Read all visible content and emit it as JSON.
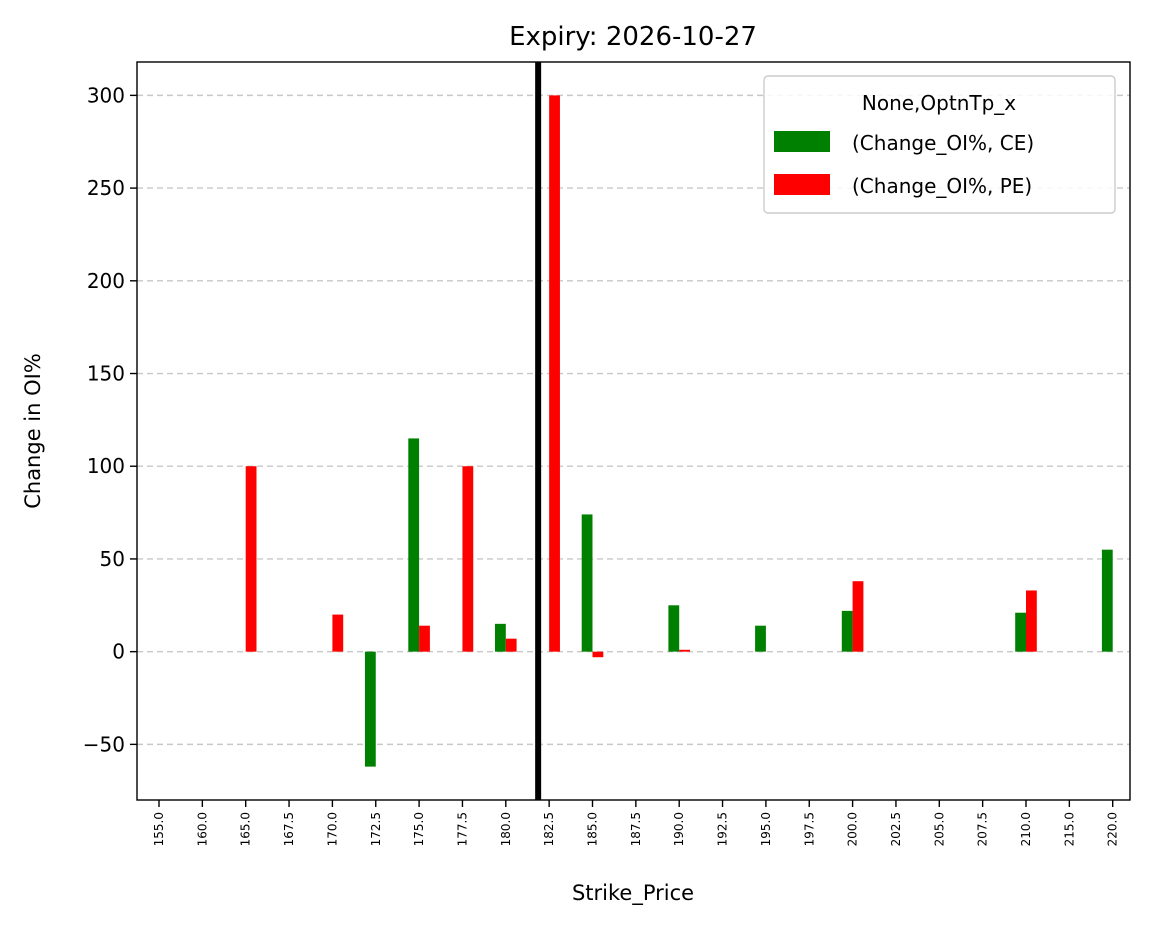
{
  "chart_data": {
    "type": "bar",
    "title": "Expiry: 2026-10-27",
    "xlabel": "Strike_Price",
    "ylabel": "Change in OI%",
    "categories": [
      "155.0",
      "160.0",
      "165.0",
      "167.5",
      "170.0",
      "172.5",
      "175.0",
      "177.5",
      "180.0",
      "182.5",
      "185.0",
      "187.5",
      "190.0",
      "192.5",
      "195.0",
      "197.5",
      "200.0",
      "202.5",
      "205.0",
      "207.5",
      "210.0",
      "215.0",
      "220.0"
    ],
    "series": [
      {
        "name": "(Change_OI%, CE)",
        "color": "#008000",
        "values": [
          null,
          null,
          null,
          null,
          null,
          -62,
          115,
          null,
          15,
          null,
          74,
          null,
          25,
          null,
          14,
          null,
          22,
          null,
          null,
          null,
          21,
          null,
          55
        ]
      },
      {
        "name": "(Change_OI%, PE)",
        "color": "#ff0000",
        "values": [
          null,
          null,
          100,
          null,
          20,
          null,
          14,
          100,
          7,
          300,
          -3,
          null,
          1,
          null,
          null,
          null,
          38,
          null,
          null,
          null,
          33,
          null,
          null
        ]
      }
    ],
    "ylim": [
      -80,
      318
    ],
    "yticks": [
      -50,
      0,
      50,
      100,
      150,
      200,
      250,
      300
    ],
    "ytick_labels": [
      "−50",
      "0",
      "50",
      "100",
      "150",
      "200",
      "250",
      "300"
    ],
    "grid": "y-dashed",
    "vertical_line": {
      "category": "182.5",
      "color": "#000000"
    },
    "legend": {
      "title": "None,OptnTp_x",
      "placement": "top-right"
    }
  }
}
